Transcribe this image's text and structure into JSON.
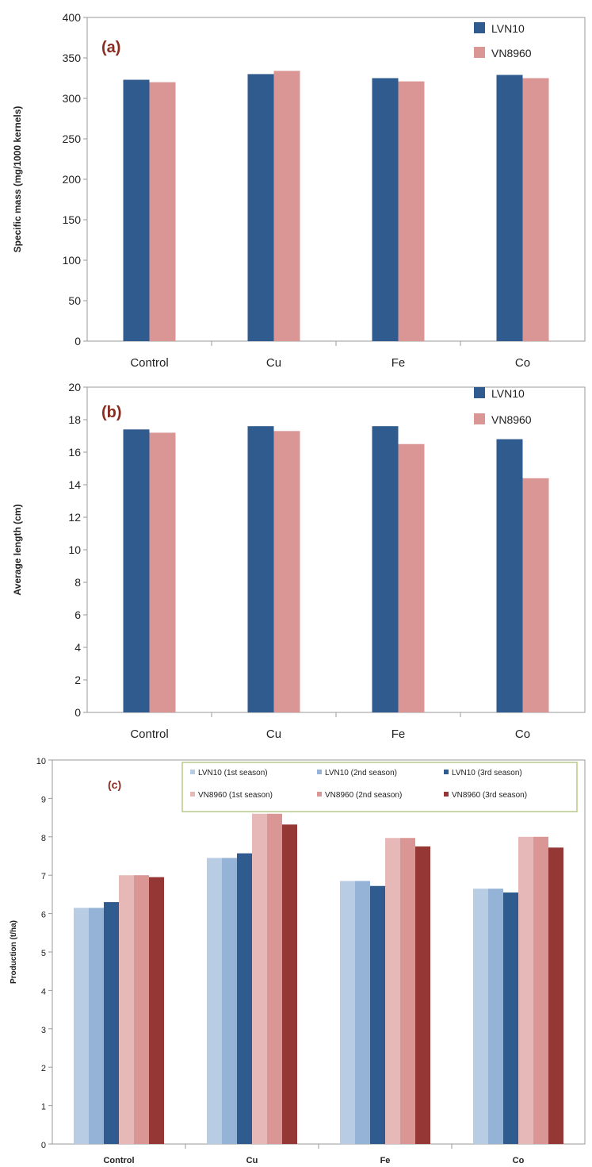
{
  "charts": [
    {
      "type": "bar",
      "panel_label": "(a)",
      "ylabel": "Specific mass (mg/1000 kernels)",
      "ylim": [
        0,
        400
      ],
      "ytick_step": 50,
      "categories": [
        "Control",
        "Cu",
        "Fe",
        "Co"
      ],
      "legend_position": "top-right",
      "series": [
        {
          "name": "LVN10",
          "color": "#2f5b8f",
          "values": [
            323,
            330,
            325,
            329
          ]
        },
        {
          "name": "VN8960",
          "color": "#d99694",
          "values": [
            320,
            334,
            321,
            325
          ]
        }
      ]
    },
    {
      "type": "bar",
      "panel_label": "(b)",
      "ylabel": "Average length (cm)",
      "ylim": [
        0,
        20
      ],
      "ytick_step": 2,
      "categories": [
        "Control",
        "Cu",
        "Fe",
        "Co"
      ],
      "legend_position": "top-right",
      "series": [
        {
          "name": "LVN10",
          "color": "#2f5b8f",
          "values": [
            17.4,
            17.6,
            17.6,
            16.8
          ]
        },
        {
          "name": "VN8960",
          "color": "#d99694",
          "values": [
            17.2,
            17.3,
            16.5,
            14.4
          ]
        }
      ]
    },
    {
      "type": "bar",
      "panel_label": "(c)",
      "ylabel": "Production (t/ha)",
      "ylim": [
        0,
        10
      ],
      "ytick_step": 1,
      "categories": [
        "Control",
        "Cu",
        "Fe",
        "Co"
      ],
      "legend_position": "top",
      "series": [
        {
          "name": "LVN10 (1st season)",
          "color": "#b8cce4",
          "values": [
            6.15,
            7.45,
            6.85,
            6.65
          ]
        },
        {
          "name": "LVN10 (2nd season)",
          "color": "#95b3d7",
          "values": [
            6.15,
            7.45,
            6.85,
            6.65
          ]
        },
        {
          "name": "LVN10 (3rd season)",
          "color": "#2f5b8f",
          "values": [
            6.3,
            7.57,
            6.72,
            6.55
          ]
        },
        {
          "name": "VN8960 (1st season)",
          "color": "#e6b9b8",
          "values": [
            7.0,
            8.6,
            7.97,
            8.0
          ]
        },
        {
          "name": "VN8960 (2nd season)",
          "color": "#d99694",
          "values": [
            7.0,
            8.6,
            7.97,
            8.0
          ]
        },
        {
          "name": "VN8960 (3rd season)",
          "color": "#953735",
          "values": [
            6.95,
            8.32,
            7.75,
            7.72
          ]
        }
      ]
    }
  ]
}
